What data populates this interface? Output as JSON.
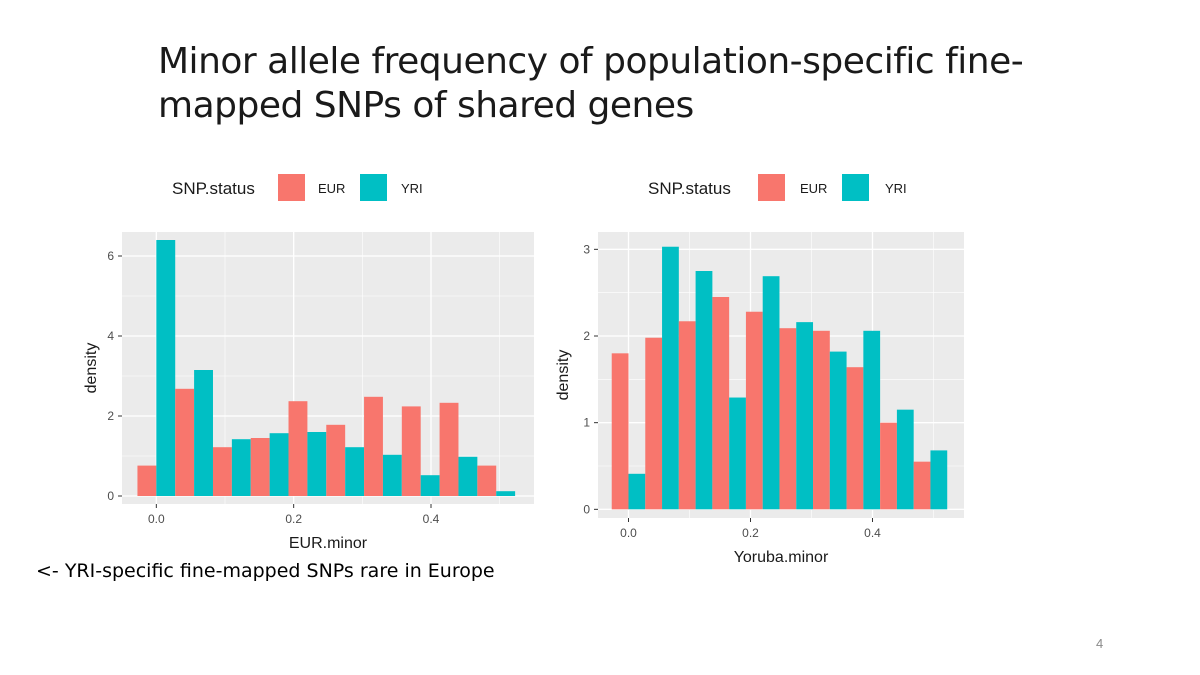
{
  "slide": {
    "title_line1": "Minor allele frequency of population-specific fine-",
    "title_line2": "mapped SNPs of shared genes",
    "footnote": "<- YRI-specific fine-mapped SNPs rare in Europe",
    "page_number": "4"
  },
  "colors": {
    "EUR": "#F8766D",
    "YRI": "#00BFC4",
    "panel": "#EBEBEB",
    "grid": "#FFFFFF",
    "axis_text": "#4D4D4D"
  },
  "chart_data": [
    {
      "type": "bar",
      "xlabel": "EUR.minor",
      "ylabel": "density",
      "legend_title": "SNP.status",
      "legend_position": "top",
      "grid": true,
      "xlim": [
        -0.05,
        0.55
      ],
      "ylim": [
        -0.2,
        6.6
      ],
      "x_ticks": [
        "0.0",
        "0.2",
        "0.4"
      ],
      "y_ticks": [
        "0",
        "2",
        "4",
        "6"
      ],
      "bin_centers": [
        0.0,
        0.055,
        0.11,
        0.165,
        0.22,
        0.275,
        0.33,
        0.385,
        0.44,
        0.495
      ],
      "series": [
        {
          "name": "EUR",
          "values": [
            0.76,
            2.68,
            1.22,
            1.45,
            2.37,
            1.78,
            2.48,
            2.24,
            2.33,
            0.76
          ]
        },
        {
          "name": "YRI",
          "values": [
            6.4,
            3.15,
            1.42,
            1.57,
            1.6,
            1.22,
            1.03,
            0.52,
            0.98,
            0.12
          ]
        }
      ]
    },
    {
      "type": "bar",
      "xlabel": "Yoruba.minor",
      "ylabel": "density",
      "legend_title": "SNP.status",
      "legend_position": "top",
      "grid": true,
      "xlim": [
        -0.05,
        0.55
      ],
      "ylim": [
        -0.1,
        3.2
      ],
      "x_ticks": [
        "0.0",
        "0.2",
        "0.4"
      ],
      "y_ticks": [
        "0",
        "1",
        "2",
        "3"
      ],
      "bin_centers": [
        0.0,
        0.055,
        0.11,
        0.165,
        0.22,
        0.275,
        0.33,
        0.385,
        0.44,
        0.495
      ],
      "series": [
        {
          "name": "EUR",
          "values": [
            1.8,
            1.98,
            2.17,
            2.45,
            2.28,
            2.09,
            2.06,
            1.64,
            1.0,
            0.55
          ]
        },
        {
          "name": "YRI",
          "values": [
            0.41,
            3.03,
            2.75,
            1.29,
            2.69,
            2.16,
            1.82,
            2.06,
            1.15,
            0.68
          ]
        }
      ]
    }
  ]
}
